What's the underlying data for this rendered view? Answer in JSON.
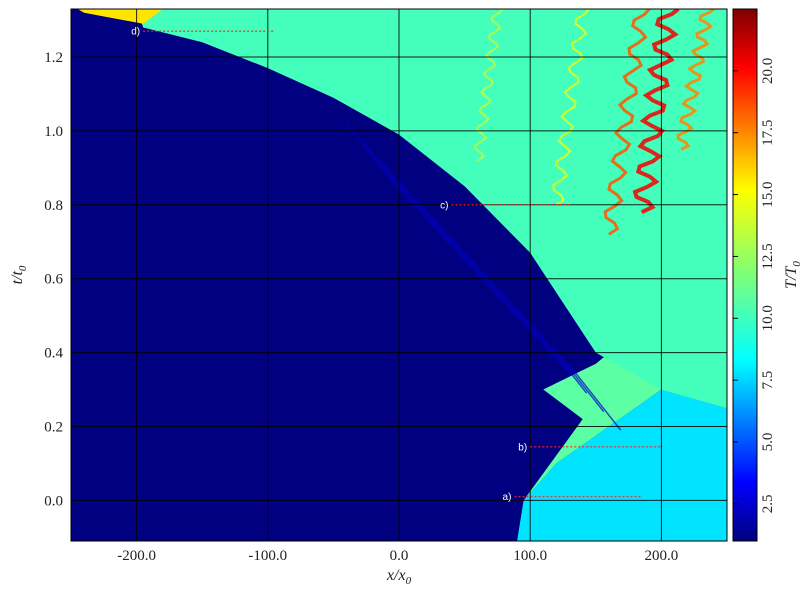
{
  "chart_data": {
    "type": "heatmap",
    "xlabel": "x/x",
    "xlabel_sub": "0",
    "ylabel": "t/t",
    "ylabel_sub": "0",
    "colorbar_label": "T/T",
    "colorbar_label_sub": "0",
    "xlim": [
      -250,
      250
    ],
    "ylim": [
      -0.11,
      1.33
    ],
    "x_ticks": [
      -200,
      -100,
      0,
      100,
      200
    ],
    "x_tick_labels": [
      "-200.0",
      "-100.0",
      "0.0",
      "100.0",
      "200.0"
    ],
    "y_ticks": [
      0.0,
      0.2,
      0.4,
      0.6,
      0.8,
      1.0,
      1.2
    ],
    "y_tick_labels": [
      "0.0",
      "0.2",
      "0.4",
      "0.6",
      "0.8",
      "1.0",
      "1.2"
    ],
    "grid": true,
    "colormap": "jet",
    "color_range": [
      1,
      22.5
    ],
    "colorbar_ticks": [
      2.5,
      5.0,
      7.5,
      10.0,
      12.5,
      15.0,
      17.5,
      20.0
    ],
    "colorbar_tick_labels": [
      "2.5",
      "5.0",
      "7.5",
      "10.0",
      "12.5",
      "15.0",
      "17.5",
      "20.0"
    ],
    "annotations": [
      {
        "label": "a)",
        "t": 0.01,
        "x_start": 88,
        "x_end": 185
      },
      {
        "label": "b)",
        "t": 0.145,
        "x_start": 100,
        "x_end": 200
      },
      {
        "label": "c)",
        "t": 0.8,
        "x_start": 40,
        "x_end": 130
      },
      {
        "label": "d)",
        "t": 1.27,
        "x_start": -195,
        "x_end": -95
      }
    ],
    "regions": [
      {
        "name": "cold-unshocked",
        "value": 1
      },
      {
        "name": "shocked-lower-right",
        "value": 8.5
      },
      {
        "name": "mid-shocked",
        "value": 11
      },
      {
        "name": "hot-layer-right",
        "value": 13.5
      },
      {
        "name": "upper-turbulent",
        "value": 10.5
      },
      {
        "name": "hot-filaments",
        "value": 18
      },
      {
        "name": "hot-corner",
        "value": 15
      }
    ]
  }
}
